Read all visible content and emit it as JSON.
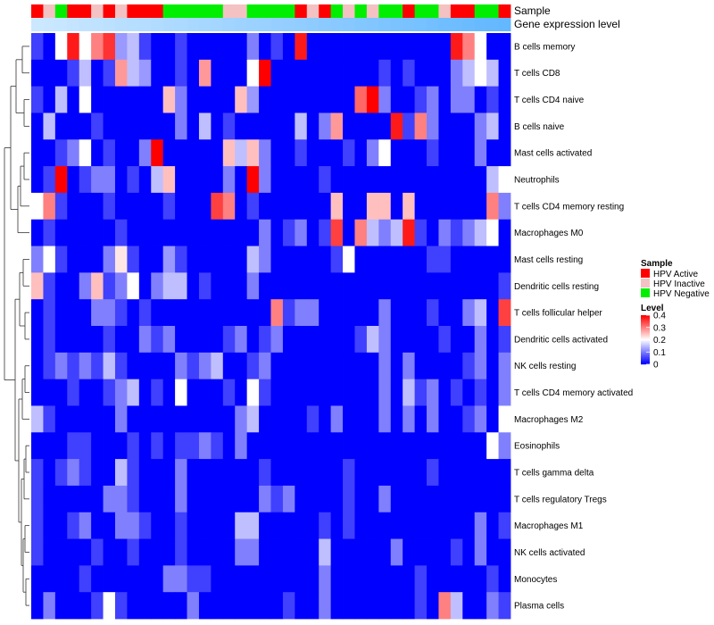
{
  "chart_data": {
    "type": "heatmap",
    "title": "",
    "tracks": [
      "Sample",
      "Gene expression level"
    ],
    "sample_groups": [
      "A",
      "I",
      "N",
      "A",
      "A",
      "I",
      "A",
      "I",
      "A",
      "A",
      "A",
      "N",
      "N",
      "N",
      "N",
      "N",
      "I",
      "I",
      "N",
      "N",
      "N",
      "N",
      "A",
      "I",
      "A",
      "N",
      "I",
      "N",
      "I",
      "N",
      "N",
      "A",
      "N",
      "N",
      "I",
      "A",
      "A",
      "N",
      "N",
      "A"
    ],
    "expression_track_color": "#63b8ff",
    "expression_track_start_color": "#cce8ff",
    "rows": [
      "B cells memory",
      "T cells CD8",
      "T cells CD4 naive",
      "B cells naive",
      "Mast cells activated",
      "Neutrophils",
      "T cells CD4 memory resting",
      "Macrophages M0",
      "Mast cells resting",
      "Dendritic cells resting",
      "T cells follicular helper",
      "Dendritic cells activated",
      "NK cells resting",
      "T cells CD4 memory activated",
      "Macrophages M2",
      "Eosinophils",
      "T cells gamma delta",
      "T cells regulatory  Tregs",
      "Macrophages M1",
      "NK cells activated",
      "Monocytes",
      "Plasma cells"
    ],
    "values": [
      [
        0.05,
        0.0,
        0.2,
        0.38,
        0.2,
        0.3,
        0.36,
        0.12,
        0.15,
        0.05,
        0.0,
        0.0,
        0.05,
        0.0,
        0.0,
        0.0,
        0.0,
        0.0,
        0.1,
        0.0,
        0.05,
        0.0,
        0.38,
        0.0,
        0.0,
        0.0,
        0.0,
        0.0,
        0.0,
        0.0,
        0.0,
        0.0,
        0.0,
        0.0,
        0.0,
        0.38,
        0.3,
        0.2,
        0.0,
        0.0
      ],
      [
        0.0,
        0.0,
        0.0,
        0.05,
        0.15,
        0.0,
        0.05,
        0.28,
        0.15,
        0.12,
        0.0,
        0.0,
        0.05,
        0.0,
        0.28,
        0.0,
        0.0,
        0.0,
        0.2,
        0.4,
        0.0,
        0.0,
        0.0,
        0.0,
        0.0,
        0.0,
        0.0,
        0.0,
        0.0,
        0.05,
        0.0,
        0.05,
        0.0,
        0.0,
        0.0,
        0.1,
        0.15,
        0.2,
        0.15,
        0.0
      ],
      [
        0.05,
        0.0,
        0.15,
        0.0,
        0.2,
        0.0,
        0.0,
        0.0,
        0.0,
        0.0,
        0.0,
        0.25,
        0.1,
        0.0,
        0.0,
        0.0,
        0.0,
        0.25,
        0.12,
        0.0,
        0.0,
        0.0,
        0.0,
        0.0,
        0.0,
        0.0,
        0.0,
        0.32,
        0.4,
        0.1,
        0.0,
        0.0,
        0.05,
        0.1,
        0.0,
        0.1,
        0.1,
        0.0,
        0.05,
        0.0
      ],
      [
        0.0,
        0.15,
        0.0,
        0.0,
        0.0,
        0.05,
        0.0,
        0.0,
        0.0,
        0.0,
        0.0,
        0.0,
        0.1,
        0.0,
        0.15,
        0.0,
        0.05,
        0.0,
        0.0,
        0.0,
        0.0,
        0.0,
        0.15,
        0.0,
        0.1,
        0.28,
        0.0,
        0.0,
        0.0,
        0.0,
        0.38,
        0.05,
        0.3,
        0.1,
        0.0,
        0.0,
        0.0,
        0.1,
        0.15,
        0.0
      ],
      [
        0.0,
        0.0,
        0.05,
        0.1,
        0.2,
        0.0,
        0.05,
        0.0,
        0.0,
        0.1,
        0.4,
        0.0,
        0.0,
        0.0,
        0.0,
        0.0,
        0.25,
        0.15,
        0.25,
        0.1,
        0.0,
        0.0,
        0.05,
        0.0,
        0.0,
        0.0,
        0.05,
        0.0,
        0.1,
        0.2,
        0.0,
        0.0,
        0.0,
        0.05,
        0.0,
        0.0,
        0.0,
        0.1,
        0.0,
        0.0
      ],
      [
        0.0,
        0.05,
        0.4,
        0.0,
        0.05,
        0.1,
        0.1,
        0.0,
        0.05,
        0.0,
        0.15,
        0.25,
        0.0,
        0.0,
        0.0,
        0.0,
        0.1,
        0.0,
        0.4,
        0.1,
        0.0,
        0.0,
        0.0,
        0.0,
        0.05,
        0.0,
        0.0,
        0.0,
        0.0,
        0.0,
        0.0,
        0.0,
        0.0,
        0.0,
        0.0,
        0.0,
        0.0,
        0.0,
        0.15,
        0.2
      ],
      [
        0.2,
        0.3,
        0.05,
        0.0,
        0.0,
        0.0,
        0.05,
        0.0,
        0.0,
        0.0,
        0.0,
        0.05,
        0.0,
        0.0,
        0.0,
        0.35,
        0.3,
        0.0,
        0.05,
        0.0,
        0.0,
        0.0,
        0.0,
        0.0,
        0.0,
        0.25,
        0.0,
        0.0,
        0.25,
        0.25,
        0.0,
        0.25,
        0.0,
        0.0,
        0.0,
        0.0,
        0.0,
        0.0,
        0.3,
        0.1
      ],
      [
        0.0,
        0.05,
        0.0,
        0.0,
        0.0,
        0.0,
        0.0,
        0.05,
        0.0,
        0.0,
        0.0,
        0.0,
        0.0,
        0.0,
        0.0,
        0.0,
        0.0,
        0.0,
        0.0,
        0.1,
        0.0,
        0.05,
        0.1,
        0.0,
        0.05,
        0.35,
        0.0,
        0.3,
        0.15,
        0.1,
        0.15,
        0.38,
        0.05,
        0.0,
        0.1,
        0.05,
        0.1,
        0.15,
        0.2,
        0.0
      ],
      [
        0.1,
        0.2,
        0.05,
        0.0,
        0.0,
        0.0,
        0.1,
        0.22,
        0.05,
        0.0,
        0.0,
        0.12,
        0.05,
        0.0,
        0.0,
        0.0,
        0.0,
        0.0,
        0.15,
        0.1,
        0.0,
        0.0,
        0.0,
        0.0,
        0.0,
        0.05,
        0.2,
        0.0,
        0.0,
        0.0,
        0.0,
        0.0,
        0.0,
        0.05,
        0.05,
        0.0,
        0.0,
        0.0,
        0.0,
        0.0
      ],
      [
        0.25,
        0.05,
        0.0,
        0.0,
        0.1,
        0.25,
        0.05,
        0.1,
        0.2,
        0.0,
        0.1,
        0.15,
        0.15,
        0.0,
        0.05,
        0.0,
        0.0,
        0.0,
        0.1,
        0.0,
        0.0,
        0.0,
        0.0,
        0.0,
        0.0,
        0.0,
        0.0,
        0.0,
        0.0,
        0.0,
        0.0,
        0.0,
        0.0,
        0.0,
        0.0,
        0.0,
        0.0,
        0.0,
        0.0,
        0.05
      ],
      [
        0.0,
        0.05,
        0.0,
        0.0,
        0.0,
        0.1,
        0.1,
        0.05,
        0.0,
        0.05,
        0.0,
        0.0,
        0.0,
        0.0,
        0.0,
        0.0,
        0.0,
        0.0,
        0.0,
        0.0,
        0.3,
        0.05,
        0.1,
        0.1,
        0.0,
        0.0,
        0.0,
        0.0,
        0.0,
        0.1,
        0.0,
        0.0,
        0.0,
        0.05,
        0.0,
        0.0,
        0.1,
        0.15,
        0.0,
        0.35
      ],
      [
        0.0,
        0.05,
        0.0,
        0.0,
        0.0,
        0.0,
        0.05,
        0.0,
        0.0,
        0.1,
        0.05,
        0.1,
        0.0,
        0.0,
        0.0,
        0.0,
        0.05,
        0.1,
        0.0,
        0.05,
        0.1,
        0.0,
        0.0,
        0.0,
        0.0,
        0.0,
        0.0,
        0.05,
        0.15,
        0.1,
        0.0,
        0.0,
        0.0,
        0.0,
        0.05,
        0.0,
        0.0,
        0.1,
        0.0,
        0.05
      ],
      [
        0.0,
        0.05,
        0.1,
        0.05,
        0.1,
        0.05,
        0.15,
        0.05,
        0.0,
        0.0,
        0.0,
        0.0,
        0.1,
        0.05,
        0.1,
        0.15,
        0.0,
        0.0,
        0.05,
        0.1,
        0.0,
        0.0,
        0.0,
        0.0,
        0.0,
        0.0,
        0.0,
        0.0,
        0.0,
        0.1,
        0.0,
        0.1,
        0.0,
        0.0,
        0.0,
        0.0,
        0.05,
        0.1,
        0.0,
        0.1
      ],
      [
        0.0,
        0.0,
        0.0,
        0.05,
        0.0,
        0.0,
        0.05,
        0.1,
        0.15,
        0.0,
        0.05,
        0.0,
        0.2,
        0.0,
        0.0,
        0.0,
        0.05,
        0.0,
        0.2,
        0.05,
        0.0,
        0.0,
        0.0,
        0.0,
        0.0,
        0.0,
        0.0,
        0.0,
        0.0,
        0.1,
        0.0,
        0.15,
        0.05,
        0.1,
        0.0,
        0.05,
        0.0,
        0.05,
        0.0,
        0.1
      ],
      [
        0.15,
        0.05,
        0.0,
        0.0,
        0.0,
        0.0,
        0.0,
        0.1,
        0.0,
        0.0,
        0.0,
        0.0,
        0.0,
        0.0,
        0.0,
        0.0,
        0.0,
        0.1,
        0.15,
        0.0,
        0.0,
        0.0,
        0.0,
        0.05,
        0.0,
        0.1,
        0.0,
        0.0,
        0.0,
        0.1,
        0.0,
        0.1,
        0.0,
        0.1,
        0.0,
        0.0,
        0.05,
        0.1,
        0.0,
        0.2
      ],
      [
        0.0,
        0.0,
        0.0,
        0.05,
        0.05,
        0.0,
        0.0,
        0.0,
        0.05,
        0.0,
        0.05,
        0.0,
        0.05,
        0.05,
        0.1,
        0.05,
        0.0,
        0.1,
        0.0,
        0.0,
        0.0,
        0.0,
        0.0,
        0.0,
        0.0,
        0.0,
        0.0,
        0.0,
        0.0,
        0.0,
        0.0,
        0.0,
        0.0,
        0.0,
        0.0,
        0.0,
        0.0,
        0.0,
        0.2,
        0.1
      ],
      [
        0.05,
        0.0,
        0.05,
        0.1,
        0.05,
        0.0,
        0.0,
        0.15,
        0.05,
        0.0,
        0.0,
        0.0,
        0.1,
        0.0,
        0.0,
        0.0,
        0.0,
        0.0,
        0.0,
        0.05,
        0.0,
        0.0,
        0.0,
        0.0,
        0.0,
        0.0,
        0.05,
        0.0,
        0.0,
        0.0,
        0.0,
        0.0,
        0.0,
        0.05,
        0.0,
        0.0,
        0.0,
        0.0,
        0.0,
        0.0
      ],
      [
        0.05,
        0.0,
        0.0,
        0.0,
        0.0,
        0.0,
        0.1,
        0.1,
        0.05,
        0.0,
        0.0,
        0.0,
        0.1,
        0.0,
        0.0,
        0.0,
        0.0,
        0.0,
        0.0,
        0.1,
        0.05,
        0.1,
        0.0,
        0.0,
        0.0,
        0.0,
        0.05,
        0.0,
        0.0,
        0.1,
        0.0,
        0.0,
        0.0,
        0.0,
        0.0,
        0.0,
        0.0,
        0.0,
        0.0,
        0.0
      ],
      [
        0.05,
        0.0,
        0.0,
        0.05,
        0.1,
        0.0,
        0.0,
        0.1,
        0.1,
        0.05,
        0.0,
        0.0,
        0.05,
        0.0,
        0.0,
        0.0,
        0.0,
        0.15,
        0.15,
        0.0,
        0.0,
        0.0,
        0.0,
        0.0,
        0.05,
        0.0,
        0.05,
        0.0,
        0.0,
        0.0,
        0.0,
        0.0,
        0.0,
        0.0,
        0.0,
        0.0,
        0.0,
        0.1,
        0.0,
        0.05
      ],
      [
        0.05,
        0.0,
        0.0,
        0.0,
        0.0,
        0.05,
        0.0,
        0.0,
        0.05,
        0.0,
        0.0,
        0.0,
        0.05,
        0.0,
        0.0,
        0.0,
        0.0,
        0.1,
        0.1,
        0.0,
        0.0,
        0.0,
        0.0,
        0.0,
        0.15,
        0.0,
        0.0,
        0.0,
        0.0,
        0.0,
        0.1,
        0.0,
        0.0,
        0.0,
        0.0,
        0.05,
        0.0,
        0.1,
        0.0,
        0.0
      ],
      [
        0.0,
        0.0,
        0.0,
        0.0,
        0.05,
        0.0,
        0.0,
        0.0,
        0.0,
        0.0,
        0.0,
        0.1,
        0.1,
        0.05,
        0.05,
        0.0,
        0.0,
        0.0,
        0.0,
        0.0,
        0.0,
        0.0,
        0.0,
        0.0,
        0.1,
        0.0,
        0.0,
        0.0,
        0.0,
        0.0,
        0.0,
        0.0,
        0.05,
        0.0,
        0.0,
        0.0,
        0.0,
        0.0,
        0.05,
        0.0
      ],
      [
        0.0,
        0.1,
        0.0,
        0.0,
        0.0,
        0.05,
        0.2,
        0.05,
        0.0,
        0.0,
        0.0,
        0.0,
        0.0,
        0.1,
        0.0,
        0.0,
        0.0,
        0.0,
        0.0,
        0.0,
        0.0,
        0.05,
        0.0,
        0.0,
        0.1,
        0.0,
        0.0,
        0.0,
        0.0,
        0.0,
        0.0,
        0.0,
        0.05,
        0.0,
        0.3,
        0.15,
        0.0,
        0.0,
        0.1,
        0.05
      ]
    ],
    "legend_sample": {
      "title": "Sample",
      "entries": [
        {
          "label": "HPV Active",
          "color": "#ff0000"
        },
        {
          "label": "HPV Inactive",
          "color": "#f4c2c2"
        },
        {
          "label": "HPV Negative",
          "color": "#00ee00"
        }
      ]
    },
    "legend_level": {
      "title": "Level",
      "ticks": [
        0.4,
        0.3,
        0.2,
        0.1,
        0
      ],
      "range": [
        0,
        0.4
      ],
      "colors": [
        "#0000ff",
        "#ffffff",
        "#ff0000"
      ]
    }
  }
}
